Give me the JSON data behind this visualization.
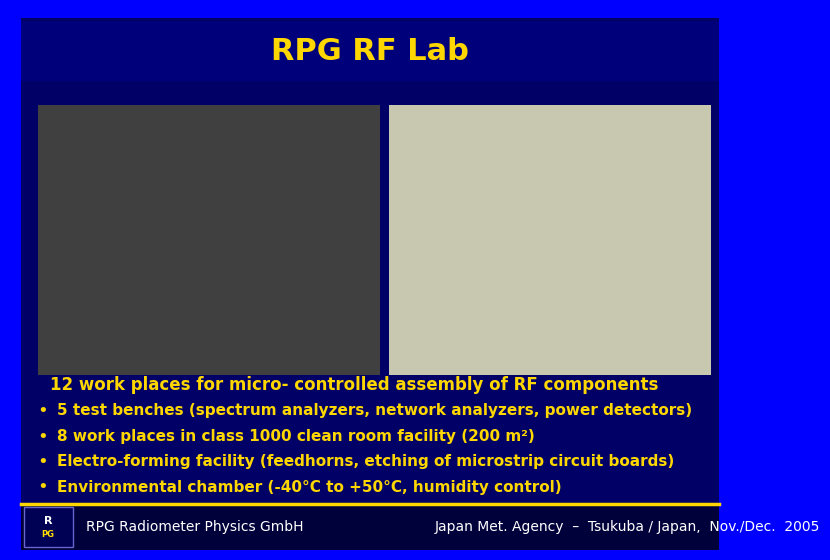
{
  "title": "RPG RF Lab",
  "title_color": "#FFD700",
  "title_bg_color": "#00007A",
  "main_bg_color": "#000066",
  "outer_bg_color": "#0000FF",
  "footer_line_color": "#FFD700",
  "footer_bg_color": "#00003A",
  "footer_text_left": "RPG Radiometer Physics GmbH",
  "footer_text_right": "Japan Met. Agency  –  Tsukuba / Japan,  Nov./Dec.  2005",
  "footer_text_color": "#FFFFFF",
  "bullet_text_color": "#FFD700",
  "intro_line": "12 work places for micro- controlled assembly of RF components",
  "bullets": [
    "5 test benches (spectrum analyzers, network analyzers, power detectors)",
    "8 work places in class 1000 clean room facility (200 m²)",
    "Electro-forming facility (feedhorns, etching of microstrip circuit boards)",
    "Environmental chamber (-40°C to +50°C, humidity control)"
  ],
  "title_fontsize": 22,
  "bullet_fontsize": 11,
  "intro_fontsize": 12,
  "footer_fontsize": 10
}
